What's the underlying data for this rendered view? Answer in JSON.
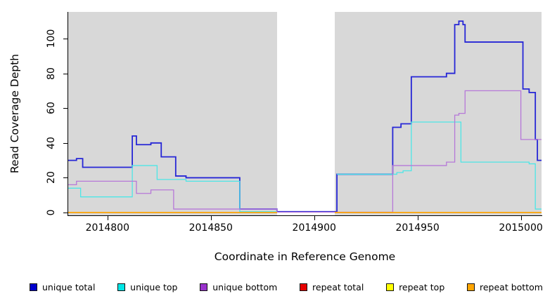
{
  "figure": {
    "background_color": "#ffffff",
    "plot_background_color": "#d8d8d8",
    "axis_color": "#000000"
  },
  "chart_data": {
    "type": "line",
    "subtype": "step-coverage",
    "title": "",
    "xlabel": "Coordinate in Reference Genome",
    "ylabel": "Read Coverage Depth",
    "xlim": [
      2014781,
      2015010
    ],
    "ylim": [
      -1.6,
      115.3
    ],
    "x_ticks": [
      2014800,
      2014850,
      2014900,
      2014950,
      2015000
    ],
    "y_ticks": [
      0,
      20,
      40,
      60,
      80,
      100
    ],
    "grid": false,
    "legend_position": "bottom",
    "masked_region": {
      "x_start": 2014882,
      "x_end": 2014910,
      "color": "#ffffff"
    },
    "series": [
      {
        "name": "unique total",
        "color": "#0000cd",
        "line_color": "#2626d6",
        "stroke_width": 1.8,
        "segments": [
          [
            [
              2014781,
              30
            ],
            [
              2014785,
              31
            ],
            [
              2014788,
              26
            ],
            [
              2014812,
              44
            ],
            [
              2014814,
              39
            ],
            [
              2014821,
              40
            ],
            [
              2014826,
              32
            ],
            [
              2014833,
              21
            ],
            [
              2014838,
              20
            ],
            [
              2014864,
              2
            ],
            [
              2014882,
              0.5
            ],
            [
              2014911,
              22
            ],
            [
              2014938,
              49
            ],
            [
              2014942,
              51
            ],
            [
              2014947,
              78
            ],
            [
              2014964,
              80
            ],
            [
              2014968,
              108
            ],
            [
              2014970,
              110
            ],
            [
              2014972,
              108
            ],
            [
              2014973,
              98
            ],
            [
              2015001,
              71
            ],
            [
              2015004,
              69
            ],
            [
              2015007,
              42
            ],
            [
              2015008,
              30
            ],
            [
              2015010,
              30
            ]
          ]
        ]
      },
      {
        "name": "unique top",
        "color": "#00e5e5",
        "line_color": "#4de6e6",
        "stroke_width": 1.3,
        "segments": [
          [
            [
              2014781,
              14
            ],
            [
              2014787,
              9
            ],
            [
              2014812,
              27
            ],
            [
              2014824,
              19
            ],
            [
              2014838,
              18
            ],
            [
              2014864,
              0.5
            ],
            [
              2014882,
              0.5
            ]
          ],
          [
            [
              2014911,
              22
            ],
            [
              2014940,
              23
            ],
            [
              2014943,
              24
            ],
            [
              2014947,
              52
            ],
            [
              2014971,
              29
            ],
            [
              2015004,
              28
            ],
            [
              2015007,
              2
            ],
            [
              2015010,
              2
            ]
          ]
        ]
      },
      {
        "name": "unique bottom",
        "color": "#9932cc",
        "line_color": "#b678d8",
        "stroke_width": 1.3,
        "segments": [
          [
            [
              2014781,
              16
            ],
            [
              2014785,
              18
            ],
            [
              2014814,
              11
            ],
            [
              2014821,
              13
            ],
            [
              2014832,
              2
            ],
            [
              2014882,
              0.2
            ],
            [
              2014938,
              27
            ],
            [
              2014964,
              29
            ],
            [
              2014968,
              56
            ],
            [
              2014970,
              57
            ],
            [
              2014973,
              70
            ],
            [
              2015000,
              42
            ],
            [
              2015010,
              42
            ]
          ]
        ]
      },
      {
        "name": "repeat total",
        "color": "#e60000",
        "line_color": "#e60000",
        "stroke_width": 1.2,
        "segments": [
          [
            [
              2014781,
              0
            ],
            [
              2014882,
              0
            ]
          ],
          [
            [
              2014910,
              0
            ],
            [
              2015010,
              0
            ]
          ]
        ]
      },
      {
        "name": "repeat top",
        "color": "#ffff00",
        "line_color": "#ffff00",
        "stroke_width": 1.2,
        "segments": [
          [
            [
              2014781,
              0
            ],
            [
              2014882,
              0
            ]
          ],
          [
            [
              2014910,
              0
            ],
            [
              2015010,
              0
            ]
          ]
        ]
      },
      {
        "name": "repeat bottom",
        "color": "#ffa500",
        "line_color": "#ffa500",
        "stroke_width": 1.5,
        "segments": [
          [
            [
              2014781,
              0
            ],
            [
              2014882,
              0
            ]
          ],
          [
            [
              2014910,
              0
            ],
            [
              2015010,
              0
            ]
          ]
        ]
      }
    ]
  }
}
